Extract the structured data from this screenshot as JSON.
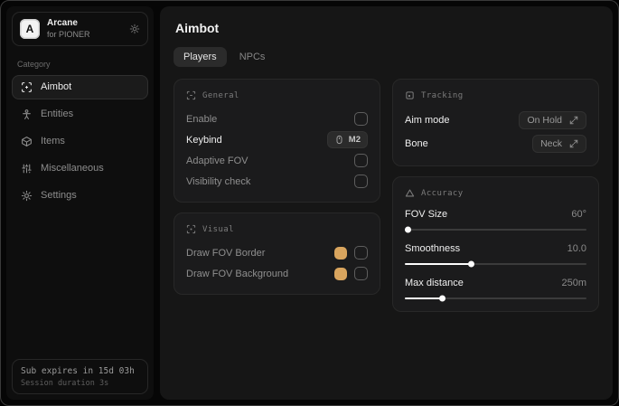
{
  "app": {
    "logo_letter": "A",
    "name": "Arcane",
    "subtitle": "for PIONER"
  },
  "sidebar": {
    "category_label": "Category",
    "items": [
      {
        "label": "Aimbot",
        "icon": "crosshair-scan-icon"
      },
      {
        "label": "Entities",
        "icon": "person-icon"
      },
      {
        "label": "Items",
        "icon": "box-icon"
      },
      {
        "label": "Miscellaneous",
        "icon": "sliders-icon"
      },
      {
        "label": "Settings",
        "icon": "gear-icon"
      }
    ],
    "subscription": {
      "line1": "Sub expires in 15d 03h",
      "line2": "Session duration 3s"
    }
  },
  "main": {
    "title": "Aimbot",
    "tabs": [
      {
        "label": "Players"
      },
      {
        "label": "NPCs"
      }
    ],
    "cards": {
      "general": {
        "title": "General",
        "rows": [
          {
            "label": "Enable",
            "control": "checkbox"
          },
          {
            "label": "Keybind",
            "value": "M2"
          },
          {
            "label": "Adaptive FOV",
            "control": "checkbox"
          },
          {
            "label": "Visibility check",
            "control": "checkbox"
          }
        ]
      },
      "visual": {
        "title": "Visual",
        "rows": [
          {
            "label": "Draw FOV Border",
            "swatch": "#d9a55e"
          },
          {
            "label": "Draw FOV Background",
            "swatch": "#d9a55e"
          }
        ]
      },
      "tracking": {
        "title": "Tracking",
        "rows": [
          {
            "label": "Aim mode",
            "value": "On Hold"
          },
          {
            "label": "Bone",
            "value": "Neck"
          }
        ]
      },
      "accuracy": {
        "title": "Accuracy",
        "sliders": [
          {
            "label": "FOV Size",
            "value": "60°",
            "percent": 2
          },
          {
            "label": "Smoothness",
            "value": "10.0",
            "percent": 37
          },
          {
            "label": "Max distance",
            "value": "250m",
            "percent": 21
          }
        ]
      }
    }
  },
  "colors": {
    "accent": "#d9a55e",
    "card_bg": "#1b1b1c",
    "main_bg": "#161616"
  }
}
